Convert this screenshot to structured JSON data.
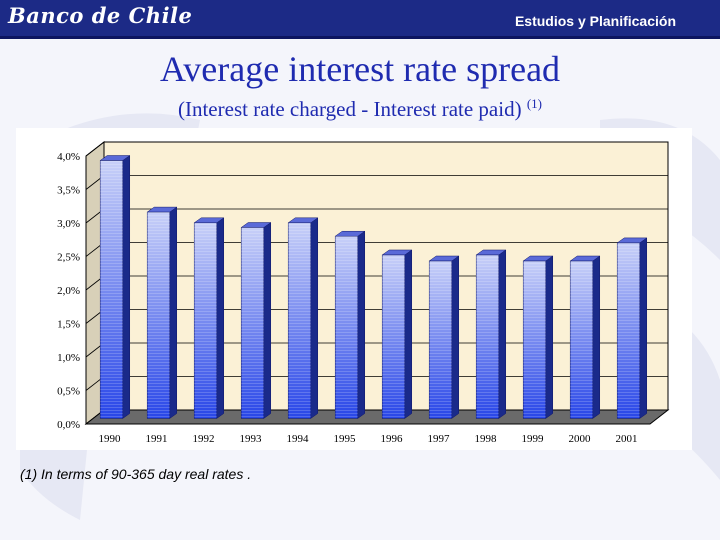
{
  "header": {
    "logo_text": "Banco de Chile",
    "department": "Estudios y Planificación"
  },
  "title": "Average interest rate spread",
  "subtitle": "(Interest rate charged - Interest rate paid)",
  "subtitle_note": "(1)",
  "footnote": "(1)  In terms of  90-365 day real rates .",
  "colors": {
    "bar_top": "#c8d0f8",
    "bar_bottom": "#2846e8",
    "plot_bg": "#fbf1d6",
    "floor": "#6a6a6a"
  },
  "chart_data": {
    "type": "bar",
    "categories": [
      "1990",
      "1991",
      "1992",
      "1993",
      "1994",
      "1995",
      "1996",
      "1997",
      "1998",
      "1999",
      "2000",
      "2001"
    ],
    "values": [
      3.85,
      3.08,
      2.92,
      2.85,
      2.92,
      2.72,
      2.44,
      2.35,
      2.44,
      2.35,
      2.35,
      2.62
    ],
    "ylim": [
      0,
      4
    ],
    "yticks": [
      "0,0%",
      "0,5%",
      "1,0%",
      "1,5%",
      "2,0%",
      "2,5%",
      "3,0%",
      "3,5%",
      "4,0%"
    ],
    "grid": true,
    "legend": "none",
    "style": "3d"
  }
}
